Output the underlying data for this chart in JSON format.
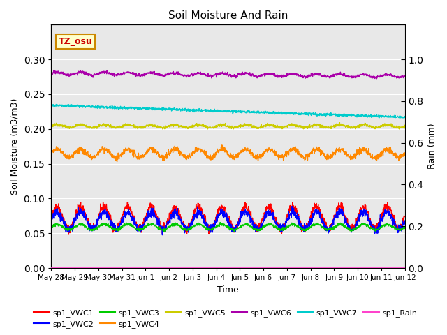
{
  "title": "Soil Moisture And Rain",
  "xlabel": "Time",
  "ylabel_left": "Soil Moisture (m3/m3)",
  "ylabel_right": "Rain (mm)",
  "ylim_left": [
    0.0,
    0.35
  ],
  "ylim_right": [
    0.0,
    1.1667
  ],
  "date_labels": [
    "May 28",
    "May 29",
    "May 30",
    "May 31",
    "Jun 1",
    "Jun 2",
    "Jun 3",
    "Jun 4",
    "Jun 5",
    "Jun 6",
    "Jun 7",
    "Jun 8",
    "Jun 9",
    "Jun 10",
    "Jun 11",
    "Jun 12"
  ],
  "yticks_left": [
    0.0,
    0.05,
    0.1,
    0.15,
    0.2,
    0.25,
    0.3
  ],
  "yticks_right": [
    0.0,
    0.2,
    0.4,
    0.6,
    0.8,
    1.0
  ],
  "annotation_text": "TZ_osu",
  "annotation_color": "#cc0000",
  "annotation_bg": "#ffffcc",
  "bg_color": "#e8e8e8",
  "series": {
    "sp1_VWC1": {
      "color": "#ff0000",
      "linewidth": 1.0
    },
    "sp1_VWC2": {
      "color": "#0000ff",
      "linewidth": 1.0
    },
    "sp1_VWC3": {
      "color": "#00cc00",
      "linewidth": 1.0
    },
    "sp1_VWC4": {
      "color": "#ff8800",
      "linewidth": 1.0
    },
    "sp1_VWC5": {
      "color": "#cccc00",
      "linewidth": 1.0
    },
    "sp1_VWC6": {
      "color": "#aa00aa",
      "linewidth": 1.0
    },
    "sp1_VWC7": {
      "color": "#00cccc",
      "linewidth": 1.0
    },
    "sp1_Rain": {
      "color": "#ff44cc",
      "linewidth": 1.0
    }
  }
}
